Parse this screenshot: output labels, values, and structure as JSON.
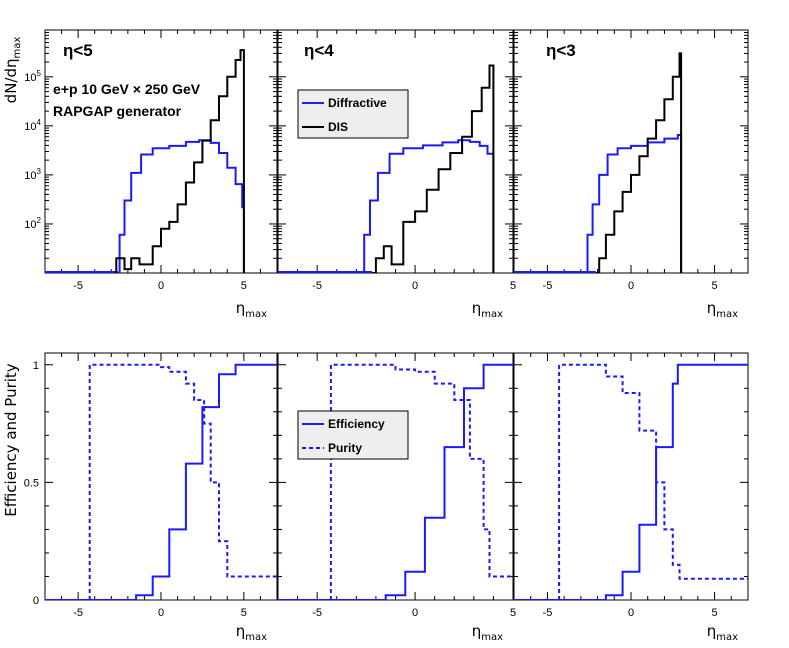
{
  "chart_data": [
    {
      "type": "line",
      "title": "",
      "ylabel": "dN/dη_max",
      "ylabel_parts": {
        "main": "dN/dη",
        "sub": "max"
      },
      "yscale": "log",
      "ylim": [
        10,
        900000
      ],
      "yticks": [
        {
          "value": 100,
          "base": "10",
          "exp": "2"
        },
        {
          "value": 1000,
          "base": "10",
          "exp": "3"
        },
        {
          "value": 10000,
          "base": "10",
          "exp": "4"
        },
        {
          "value": 100000,
          "base": "10",
          "exp": "5"
        }
      ],
      "annotations": [
        "e+p 10 GeV × 250 GeV",
        "RAPGAP generator"
      ],
      "legend": {
        "panel": 1,
        "entries": [
          {
            "label": "Diffractive",
            "color": "#1a1aff",
            "dash": false
          },
          {
            "label": "DIS",
            "color": "#000000",
            "dash": false
          }
        ]
      },
      "panels": [
        {
          "title": "η<5",
          "xlabel": {
            "main": "η",
            "sub": "max"
          },
          "xlim": [
            -7,
            7
          ],
          "xticks": [
            -5,
            0,
            5
          ],
          "cut": 5,
          "series": [
            {
              "name": "Diffractive",
              "color": "#1a1aff",
              "points": [
                [
                  -2.6,
                  10
                ],
                [
                  -2.5,
                  60
                ],
                [
                  -2.2,
                  300
                ],
                [
                  -1.8,
                  1100
                ],
                [
                  -1.2,
                  2600
                ],
                [
                  -0.5,
                  3500
                ],
                [
                  0.5,
                  3900
                ],
                [
                  1.5,
                  4700
                ],
                [
                  2.3,
                  5100
                ],
                [
                  3.0,
                  4500
                ],
                [
                  3.5,
                  2800
                ],
                [
                  4.0,
                  1400
                ],
                [
                  4.5,
                  650
                ],
                [
                  4.9,
                  220
                ],
                [
                  5.0,
                  10
                ]
              ]
            },
            {
              "name": "DIS",
              "color": "#000000",
              "points": [
                [
                  -2.8,
                  10
                ],
                [
                  -2.7,
                  20
                ],
                [
                  -2.2,
                  12
                ],
                [
                  -1.8,
                  20
                ],
                [
                  -1.3,
                  15
                ],
                [
                  -0.5,
                  35
                ],
                [
                  0,
                  80
                ],
                [
                  0.5,
                  110
                ],
                [
                  1,
                  250
                ],
                [
                  1.5,
                  700
                ],
                [
                  2,
                  1800
                ],
                [
                  2.5,
                  5000
                ],
                [
                  3,
                  13000
                ],
                [
                  3.5,
                  40000
                ],
                [
                  4,
                  100000
                ],
                [
                  4.5,
                  220000
                ],
                [
                  4.8,
                  350000
                ],
                [
                  5.0,
                  10
                ]
              ]
            }
          ]
        },
        {
          "title": "η<4",
          "xlabel": {
            "main": "η",
            "sub": "max"
          },
          "xlim": [
            -7,
            5
          ],
          "xticks": [
            -5,
            0,
            5
          ],
          "cut": 4,
          "series": [
            {
              "name": "Diffractive",
              "color": "#1a1aff",
              "points": [
                [
                  -2.7,
                  10
                ],
                [
                  -2.6,
                  60
                ],
                [
                  -2.3,
                  300
                ],
                [
                  -1.9,
                  1100
                ],
                [
                  -1.3,
                  2700
                ],
                [
                  -0.6,
                  3500
                ],
                [
                  0.4,
                  4000
                ],
                [
                  1.4,
                  4600
                ],
                [
                  2.2,
                  5100
                ],
                [
                  2.8,
                  4700
                ],
                [
                  3.3,
                  3900
                ],
                [
                  3.7,
                  2700
                ],
                [
                  4.0,
                  10
                ]
              ]
            },
            {
              "name": "DIS",
              "color": "#000000",
              "points": [
                [
                  -2.2,
                  10
                ],
                [
                  -2.0,
                  20
                ],
                [
                  -1.6,
                  35
                ],
                [
                  -1.2,
                  15
                ],
                [
                  -0.6,
                  110
                ],
                [
                  0,
                  180
                ],
                [
                  0.6,
                  500
                ],
                [
                  1.2,
                  1300
                ],
                [
                  1.8,
                  2800
                ],
                [
                  2.4,
                  6000
                ],
                [
                  2.9,
                  20000
                ],
                [
                  3.4,
                  60000
                ],
                [
                  3.8,
                  170000
                ],
                [
                  4.0,
                  10
                ]
              ]
            }
          ]
        },
        {
          "title": "η<3",
          "xlabel": {
            "main": "η",
            "sub": "max"
          },
          "xlim": [
            -7,
            7
          ],
          "xticks": [
            -5,
            0,
            5
          ],
          "cut": 3,
          "series": [
            {
              "name": "Diffractive",
              "color": "#1a1aff",
              "points": [
                [
                  -2.7,
                  10
                ],
                [
                  -2.6,
                  60
                ],
                [
                  -2.3,
                  250
                ],
                [
                  -1.9,
                  1000
                ],
                [
                  -1.4,
                  2600
                ],
                [
                  -0.8,
                  3500
                ],
                [
                  0.0,
                  3900
                ],
                [
                  1.0,
                  4600
                ],
                [
                  2.0,
                  5500
                ],
                [
                  2.8,
                  6500
                ],
                [
                  3.0,
                  10
                ]
              ]
            },
            {
              "name": "DIS",
              "color": "#000000",
              "points": [
                [
                  -2.1,
                  10
                ],
                [
                  -1.9,
                  20
                ],
                [
                  -1.5,
                  60
                ],
                [
                  -1.0,
                  180
                ],
                [
                  -0.5,
                  450
                ],
                [
                  0.0,
                  1000
                ],
                [
                  0.5,
                  2400
                ],
                [
                  1.0,
                  5500
                ],
                [
                  1.5,
                  13000
                ],
                [
                  2.0,
                  35000
                ],
                [
                  2.5,
                  100000
                ],
                [
                  2.9,
                  300000
                ],
                [
                  3.0,
                  10
                ]
              ]
            }
          ]
        }
      ]
    },
    {
      "type": "line",
      "title": "",
      "ylabel": "Efficiency and Purity",
      "ylim": [
        0,
        1.05
      ],
      "yticks": [
        {
          "value": 0,
          "label": "0"
        },
        {
          "value": 0.5,
          "label": "0.5"
        },
        {
          "value": 1,
          "label": "1"
        }
      ],
      "legend": {
        "panel": 1,
        "entries": [
          {
            "label": "Efficiency",
            "color": "#1a1aff",
            "dash": false
          },
          {
            "label": "Purity",
            "color": "#1a1aff",
            "dash": true
          }
        ]
      },
      "panels": [
        {
          "xlabel": {
            "main": "η",
            "sub": "max"
          },
          "xlim": [
            -7,
            7
          ],
          "xticks": [
            -5,
            0,
            5
          ],
          "series": [
            {
              "name": "Efficiency",
              "color": "#1a1aff",
              "dash": false,
              "points": [
                [
                  -7,
                  0
                ],
                [
                  -2.3,
                  0
                ],
                [
                  -1.5,
                  0.02
                ],
                [
                  -0.5,
                  0.1
                ],
                [
                  0.5,
                  0.3
                ],
                [
                  1.5,
                  0.58
                ],
                [
                  2.5,
                  0.82
                ],
                [
                  3.5,
                  0.96
                ],
                [
                  4.5,
                  1.0
                ],
                [
                  7,
                  1.0
                ]
              ]
            },
            {
              "name": "Purity",
              "color": "#1a1aff",
              "dash": true,
              "points": [
                [
                  -4.3,
                  0
                ],
                [
                  -4.3,
                  1.0
                ],
                [
                  -1.5,
                  1.0
                ],
                [
                  0,
                  0.99
                ],
                [
                  0.5,
                  0.97
                ],
                [
                  1.5,
                  0.92
                ],
                [
                  2.0,
                  0.85
                ],
                [
                  2.6,
                  0.75
                ],
                [
                  3.0,
                  0.5
                ],
                [
                  3.5,
                  0.25
                ],
                [
                  4.0,
                  0.1
                ],
                [
                  7,
                  0.09
                ]
              ]
            }
          ]
        },
        {
          "xlabel": {
            "main": "η",
            "sub": "max"
          },
          "xlim": [
            -7,
            5
          ],
          "xticks": [
            -5,
            0,
            5
          ],
          "series": [
            {
              "name": "Efficiency",
              "color": "#1a1aff",
              "dash": false,
              "points": [
                [
                  -7,
                  0
                ],
                [
                  -2.3,
                  0
                ],
                [
                  -1.5,
                  0.02
                ],
                [
                  -0.5,
                  0.12
                ],
                [
                  0.5,
                  0.35
                ],
                [
                  1.5,
                  0.65
                ],
                [
                  2.5,
                  0.9
                ],
                [
                  3.5,
                  1.0
                ],
                [
                  7,
                  1.0
                ]
              ]
            },
            {
              "name": "Purity",
              "color": "#1a1aff",
              "dash": true,
              "points": [
                [
                  -4.3,
                  0
                ],
                [
                  -4.3,
                  1.0
                ],
                [
                  -1.5,
                  1.0
                ],
                [
                  -1.0,
                  0.98
                ],
                [
                  0,
                  0.97
                ],
                [
                  1.0,
                  0.92
                ],
                [
                  2.0,
                  0.85
                ],
                [
                  2.8,
                  0.6
                ],
                [
                  3.5,
                  0.3
                ],
                [
                  3.8,
                  0.1
                ],
                [
                  7,
                  0.09
                ]
              ]
            }
          ]
        },
        {
          "xlabel": {
            "main": "η",
            "sub": "max"
          },
          "xlim": [
            -7,
            7
          ],
          "xticks": [
            -5,
            0,
            5
          ],
          "series": [
            {
              "name": "Efficiency",
              "color": "#1a1aff",
              "dash": false,
              "points": [
                [
                  -7,
                  0
                ],
                [
                  -2.3,
                  0
                ],
                [
                  -1.5,
                  0.02
                ],
                [
                  -0.5,
                  0.12
                ],
                [
                  0.5,
                  0.32
                ],
                [
                  1.5,
                  0.65
                ],
                [
                  2.5,
                  0.92
                ],
                [
                  2.8,
                  1.0
                ],
                [
                  7,
                  1.0
                ]
              ]
            },
            {
              "name": "Purity",
              "color": "#1a1aff",
              "dash": true,
              "points": [
                [
                  -4.3,
                  0
                ],
                [
                  -4.3,
                  1.0
                ],
                [
                  -2.0,
                  1.0
                ],
                [
                  -1.5,
                  0.95
                ],
                [
                  -0.5,
                  0.88
                ],
                [
                  0.5,
                  0.72
                ],
                [
                  1.5,
                  0.5
                ],
                [
                  2.0,
                  0.3
                ],
                [
                  2.5,
                  0.15
                ],
                [
                  2.9,
                  0.09
                ],
                [
                  7,
                  0.09
                ]
              ]
            }
          ]
        }
      ]
    }
  ]
}
